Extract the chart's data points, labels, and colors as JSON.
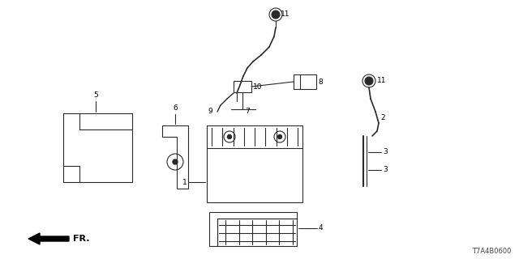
{
  "background_color": "#ffffff",
  "part_code": "T7A4B0600",
  "line_color": "#2a2a2a",
  "label_color": "#000000",
  "font_size": 6.5,
  "figsize": [
    6.4,
    3.2
  ],
  "dpi": 100
}
